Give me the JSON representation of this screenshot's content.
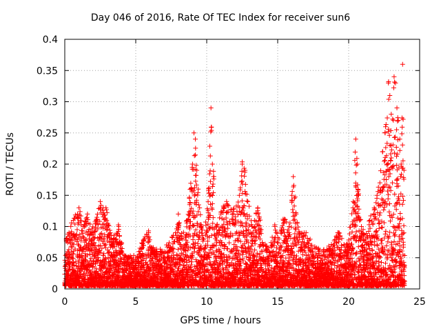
{
  "chart_data": {
    "type": "scatter",
    "title": "Day 046 of 2016, Rate Of TEC Index for receiver sun6",
    "xlabel": "GPS time / hours",
    "ylabel": "ROTI / TECUs",
    "xlim": [
      0,
      25
    ],
    "ylim": [
      0,
      0.4
    ],
    "xticks": [
      "0",
      "5",
      "10",
      "15",
      "20",
      "25"
    ],
    "yticks": [
      "0",
      "0.05",
      "0.1",
      "0.15",
      "0.2",
      "0.25",
      "0.3",
      "0.35",
      "0.4"
    ],
    "grid": true,
    "marker": "+",
    "color": "#ff0000",
    "series": [
      {
        "name": "ROTI",
        "points": [
          [
            0.1,
            0.08
          ],
          [
            0.3,
            0.09
          ],
          [
            0.6,
            0.11
          ],
          [
            0.9,
            0.12
          ],
          [
            1.0,
            0.13
          ],
          [
            1.3,
            0.1
          ],
          [
            1.6,
            0.12
          ],
          [
            1.9,
            0.09
          ],
          [
            2.2,
            0.11
          ],
          [
            2.5,
            0.14
          ],
          [
            2.7,
            0.13
          ],
          [
            2.9,
            0.13
          ],
          [
            3.2,
            0.09
          ],
          [
            3.6,
            0.08
          ],
          [
            3.8,
            0.1
          ],
          [
            4.2,
            0.05
          ],
          [
            4.6,
            0.05
          ],
          [
            5.1,
            0.05
          ],
          [
            5.6,
            0.08
          ],
          [
            5.9,
            0.09
          ],
          [
            6.3,
            0.06
          ],
          [
            6.8,
            0.06
          ],
          [
            7.3,
            0.07
          ],
          [
            7.8,
            0.09
          ],
          [
            8.0,
            0.12
          ],
          [
            8.3,
            0.08
          ],
          [
            8.6,
            0.11
          ],
          [
            9.0,
            0.2
          ],
          [
            9.1,
            0.25
          ],
          [
            9.2,
            0.24
          ],
          [
            9.3,
            0.19
          ],
          [
            9.4,
            0.16
          ],
          [
            9.5,
            0.13
          ],
          [
            9.6,
            0.1
          ],
          [
            9.8,
            0.08
          ],
          [
            10.1,
            0.14
          ],
          [
            10.3,
            0.29
          ],
          [
            10.4,
            0.2
          ],
          [
            10.5,
            0.18
          ],
          [
            10.7,
            0.1
          ],
          [
            11.0,
            0.12
          ],
          [
            11.4,
            0.14
          ],
          [
            11.8,
            0.12
          ],
          [
            12.3,
            0.15
          ],
          [
            12.5,
            0.2
          ],
          [
            12.7,
            0.19
          ],
          [
            12.9,
            0.14
          ],
          [
            13.2,
            0.1
          ],
          [
            13.6,
            0.13
          ],
          [
            14.0,
            0.07
          ],
          [
            14.4,
            0.06
          ],
          [
            14.8,
            0.1
          ],
          [
            15.1,
            0.08
          ],
          [
            15.4,
            0.11
          ],
          [
            15.8,
            0.1
          ],
          [
            16.0,
            0.15
          ],
          [
            16.1,
            0.18
          ],
          [
            16.3,
            0.12
          ],
          [
            16.5,
            0.09
          ],
          [
            17.0,
            0.09
          ],
          [
            17.4,
            0.07
          ],
          [
            17.9,
            0.06
          ],
          [
            18.4,
            0.06
          ],
          [
            18.9,
            0.07
          ],
          [
            19.3,
            0.09
          ],
          [
            19.8,
            0.06
          ],
          [
            20.3,
            0.13
          ],
          [
            20.5,
            0.24
          ],
          [
            20.6,
            0.2
          ],
          [
            20.7,
            0.15
          ],
          [
            20.9,
            0.1
          ],
          [
            21.2,
            0.08
          ],
          [
            21.5,
            0.11
          ],
          [
            21.8,
            0.13
          ],
          [
            22.0,
            0.15
          ],
          [
            22.2,
            0.17
          ],
          [
            22.4,
            0.22
          ],
          [
            22.6,
            0.26
          ],
          [
            22.8,
            0.33
          ],
          [
            22.9,
            0.31
          ],
          [
            23.0,
            0.28
          ],
          [
            23.2,
            0.34
          ],
          [
            23.3,
            0.33
          ],
          [
            23.4,
            0.29
          ],
          [
            23.5,
            0.27
          ],
          [
            23.6,
            0.24
          ],
          [
            23.7,
            0.2
          ],
          [
            23.8,
            0.36
          ],
          [
            23.9,
            0.19
          ]
        ]
      }
    ]
  }
}
